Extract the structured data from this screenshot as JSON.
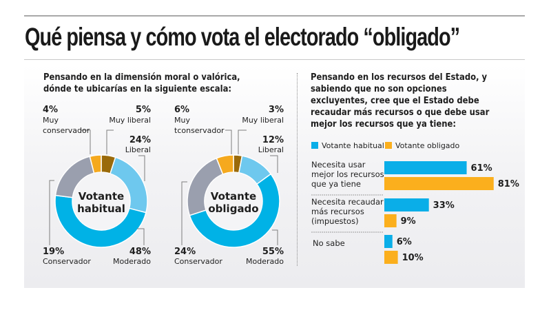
{
  "title": "Qué piensa y cómo vota el electorado “obligado”",
  "left_question": [
    "Pensando en la dimensión moral o valórica,",
    "dónde te ubicarías en la siguiente escala:"
  ],
  "right_question": [
    "Pensando en los recursos del Estado, y",
    "sabiendo que no son opciones",
    "excluyentes, cree que el Estado debe",
    "recaudar más recursos o que debe usar",
    "mejor los recursos que ya tiene:"
  ],
  "colors": {
    "muy_liberal": "#9a6a0a",
    "liberal": "#6ec8ee",
    "moderado": "#00b2e6",
    "conservador": "#9a9fae",
    "muy_conservador": "#f5a91e",
    "habitual": "#0aaee8",
    "obligado": "#fbaf1d"
  },
  "chart_data": [
    {
      "type": "pie",
      "variant": "donut",
      "title": "Votante habitual",
      "center_label": [
        "Votante",
        "habitual"
      ],
      "order": "clockwise from top",
      "slices": [
        {
          "key": "muy_liberal",
          "label": "Muy liberal",
          "value": 5,
          "pct_text": "5%"
        },
        {
          "key": "liberal",
          "label": "Liberal",
          "value": 24,
          "pct_text": "24%"
        },
        {
          "key": "moderado",
          "label": "Moderado",
          "value": 48,
          "pct_text": "48%"
        },
        {
          "key": "conservador",
          "label": "Conservador",
          "value": 19,
          "pct_text": "19%"
        },
        {
          "key": "muy_conservador",
          "label_lines": [
            "Muy",
            "conservador"
          ],
          "label": "Muy conservador",
          "value": 4,
          "pct_text": "4%"
        }
      ]
    },
    {
      "type": "pie",
      "variant": "donut",
      "title": "Votante obligado",
      "center_label": [
        "Votante",
        "obligado"
      ],
      "order": "clockwise from top",
      "slices": [
        {
          "key": "muy_liberal",
          "label": "Muy liberal",
          "value": 3,
          "pct_text": "3%"
        },
        {
          "key": "liberal",
          "label": "Liberal",
          "value": 12,
          "pct_text": "12%"
        },
        {
          "key": "moderado",
          "label": "Moderado",
          "value": 55,
          "pct_text": "55%"
        },
        {
          "key": "conservador",
          "label": "Conservador",
          "value": 24,
          "pct_text": "24%"
        },
        {
          "key": "muy_conservador",
          "label_lines": [
            "Muy",
            "tconservador"
          ],
          "label": "Muy tconservador",
          "value": 6,
          "pct_text": "6%"
        }
      ]
    },
    {
      "type": "bar",
      "orientation": "horizontal",
      "legend": [
        {
          "key": "habitual",
          "label": "Votante habitual"
        },
        {
          "key": "obligado",
          "label": "Votante obligado"
        }
      ],
      "legend_position": "top",
      "categories": [
        [
          "Necesita usar",
          "mejor los recursos",
          "que ya tiene"
        ],
        [
          "Necesita recaudar",
          "más recursos",
          "(impuestos)"
        ],
        [
          "No sabe"
        ]
      ],
      "series": [
        {
          "name": "Votante habitual",
          "key": "habitual",
          "values": [
            61,
            33,
            6
          ],
          "labels": [
            "61%",
            "33%",
            "6%"
          ]
        },
        {
          "name": "Votante obligado",
          "key": "obligado",
          "values": [
            81,
            9,
            10
          ],
          "labels": [
            "81%",
            "9%",
            "10%"
          ]
        }
      ],
      "xlim": [
        0,
        100
      ],
      "unit": "%"
    }
  ]
}
